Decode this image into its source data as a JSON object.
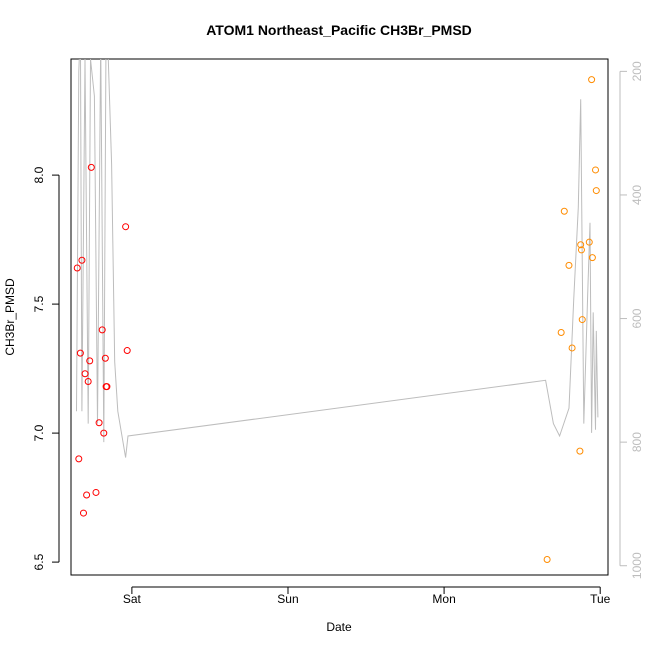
{
  "chart_data": {
    "type": "scatter",
    "title": "ATOM1 Northeast_Pacific CH3Br_PMSD",
    "xlabel": "Date",
    "ylabel": "CH3Br_PMSD",
    "x_unit": "days",
    "xlim": [
      -0.39,
      3.05
    ],
    "ylim": [
      6.45,
      8.45
    ],
    "y_ticks": [
      6.5,
      7.0,
      7.5,
      8.0
    ],
    "x_ticks": [
      {
        "value": 0,
        "label": "Sat"
      },
      {
        "value": 1,
        "label": "Sun"
      },
      {
        "value": 2,
        "label": "Mon"
      },
      {
        "value": 3,
        "label": "Tue"
      }
    ],
    "right_axis": {
      "ticks": [
        200,
        400,
        600,
        800,
        1000
      ],
      "lim": [
        1015,
        180
      ],
      "color": "#bdbdbd"
    },
    "series": [
      {
        "color": "#ff0000",
        "marker": "open-circle",
        "points": [
          {
            "x": -0.35,
            "y": 7.64
          },
          {
            "x": -0.34,
            "y": 6.9
          },
          {
            "x": -0.33,
            "y": 7.31
          },
          {
            "x": -0.32,
            "y": 7.67
          },
          {
            "x": -0.31,
            "y": 6.69
          },
          {
            "x": -0.3,
            "y": 7.23
          },
          {
            "x": -0.29,
            "y": 6.76
          },
          {
            "x": -0.28,
            "y": 7.2
          },
          {
            "x": -0.27,
            "y": 7.28
          },
          {
            "x": -0.26,
            "y": 8.03
          },
          {
            "x": -0.23,
            "y": 6.77
          },
          {
            "x": -0.21,
            "y": 7.04
          },
          {
            "x": -0.19,
            "y": 7.4
          },
          {
            "x": -0.18,
            "y": 7.0
          },
          {
            "x": -0.17,
            "y": 7.29
          },
          {
            "x": -0.165,
            "y": 7.18
          },
          {
            "x": -0.16,
            "y": 7.18
          },
          {
            "x": -0.04,
            "y": 7.8
          },
          {
            "x": -0.03,
            "y": 7.32
          }
        ]
      },
      {
        "color": "#ff8c00",
        "marker": "open-circle",
        "points": [
          {
            "x": 2.66,
            "y": 6.51
          },
          {
            "x": 2.75,
            "y": 7.39
          },
          {
            "x": 2.77,
            "y": 7.86
          },
          {
            "x": 2.8,
            "y": 7.65
          },
          {
            "x": 2.82,
            "y": 7.33
          },
          {
            "x": 2.87,
            "y": 6.93
          },
          {
            "x": 2.875,
            "y": 7.73
          },
          {
            "x": 2.88,
            "y": 7.71
          },
          {
            "x": 2.885,
            "y": 7.44
          },
          {
            "x": 2.93,
            "y": 7.74
          },
          {
            "x": 2.945,
            "y": 8.37
          },
          {
            "x": 2.95,
            "y": 7.68
          },
          {
            "x": 2.97,
            "y": 8.02
          },
          {
            "x": 2.975,
            "y": 7.94
          }
        ]
      },
      {
        "color": "#bdbdbd",
        "marker": "line",
        "axis": "right",
        "points": [
          {
            "x": -0.355,
            "y": 750
          },
          {
            "x": -0.34,
            "y": 200
          },
          {
            "x": -0.33,
            "y": 130
          },
          {
            "x": -0.32,
            "y": 750
          },
          {
            "x": -0.3,
            "y": 180
          },
          {
            "x": -0.28,
            "y": 770
          },
          {
            "x": -0.265,
            "y": 180
          },
          {
            "x": -0.24,
            "y": 240
          },
          {
            "x": -0.22,
            "y": 770
          },
          {
            "x": -0.2,
            "y": 150
          },
          {
            "x": -0.18,
            "y": 800
          },
          {
            "x": -0.165,
            "y": 120
          },
          {
            "x": -0.155,
            "y": 150
          },
          {
            "x": -0.13,
            "y": 350
          },
          {
            "x": -0.11,
            "y": 670
          },
          {
            "x": -0.09,
            "y": 750
          },
          {
            "x": -0.04,
            "y": 825
          },
          {
            "x": -0.025,
            "y": 790
          },
          {
            "x": 2.65,
            "y": 700
          },
          {
            "x": 2.7,
            "y": 770
          },
          {
            "x": 2.74,
            "y": 790
          },
          {
            "x": 2.8,
            "y": 745
          },
          {
            "x": 2.83,
            "y": 570
          },
          {
            "x": 2.86,
            "y": 420
          },
          {
            "x": 2.875,
            "y": 245
          },
          {
            "x": 2.895,
            "y": 770
          },
          {
            "x": 2.92,
            "y": 560
          },
          {
            "x": 2.935,
            "y": 445
          },
          {
            "x": 2.945,
            "y": 785
          },
          {
            "x": 2.955,
            "y": 590
          },
          {
            "x": 2.97,
            "y": 780
          },
          {
            "x": 2.975,
            "y": 620
          },
          {
            "x": 2.985,
            "y": 760
          }
        ]
      }
    ]
  }
}
